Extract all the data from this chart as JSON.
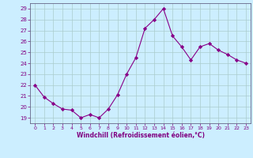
{
  "x": [
    0,
    1,
    2,
    3,
    4,
    5,
    6,
    7,
    8,
    9,
    10,
    11,
    12,
    13,
    14,
    15,
    16,
    17,
    18,
    19,
    20,
    21,
    22,
    23
  ],
  "y": [
    22.0,
    20.9,
    20.3,
    19.8,
    19.7,
    19.0,
    19.3,
    19.0,
    19.8,
    21.1,
    23.0,
    24.5,
    27.2,
    28.0,
    29.0,
    26.5,
    25.5,
    24.3,
    25.5,
    25.8,
    25.2,
    24.8,
    24.3,
    24.0
  ],
  "line_color": "#880088",
  "marker": "D",
  "marker_size": 2.2,
  "bg_color": "#cceeff",
  "grid_color": "#aacccc",
  "axis_color": "#666688",
  "tick_label_color": "#800080",
  "xlabel": "Windchill (Refroidissement éolien,°C)",
  "xlabel_color": "#800080",
  "ylim": [
    18.5,
    29.5
  ],
  "yticks": [
    19,
    20,
    21,
    22,
    23,
    24,
    25,
    26,
    27,
    28,
    29
  ],
  "xlim": [
    -0.5,
    23.5
  ],
  "xticks": [
    0,
    1,
    2,
    3,
    4,
    5,
    6,
    7,
    8,
    9,
    10,
    11,
    12,
    13,
    14,
    15,
    16,
    17,
    18,
    19,
    20,
    21,
    22,
    23
  ]
}
